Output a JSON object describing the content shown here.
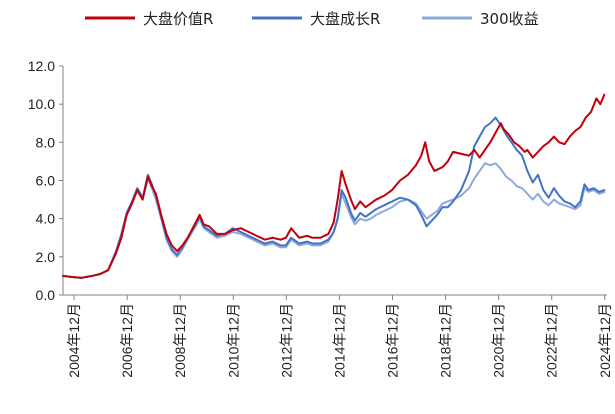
{
  "chart_data": {
    "type": "line",
    "title": "",
    "xlabel": "",
    "ylabel": "",
    "x_range": [
      2004.5,
      2025.0
    ],
    "ylim": [
      0,
      12
    ],
    "y_ticks": [
      "0.0",
      "2.0",
      "4.0",
      "6.0",
      "8.0",
      "10.0",
      "12.0"
    ],
    "x_ticks": [
      {
        "label": "2004年12月",
        "x": 2004.917
      },
      {
        "label": "2006年12月",
        "x": 2006.917
      },
      {
        "label": "2008年12月",
        "x": 2008.917
      },
      {
        "label": "2010年12月",
        "x": 2010.917
      },
      {
        "label": "2012年12月",
        "x": 2012.917
      },
      {
        "label": "2014年12月",
        "x": 2014.917
      },
      {
        "label": "2016年12月",
        "x": 2016.917
      },
      {
        "label": "2018年12月",
        "x": 2018.917
      },
      {
        "label": "2020年12月",
        "x": 2020.917
      },
      {
        "label": "2022年12月",
        "x": 2022.917
      },
      {
        "label": "2024年12月",
        "x": 2024.917
      }
    ],
    "grid": false,
    "legend_position": "top",
    "series": [
      {
        "name": "大盘价值R",
        "color": "#c0000b",
        "points": [
          [
            2004.5,
            1.0
          ],
          [
            2004.8,
            0.95
          ],
          [
            2005.2,
            0.9
          ],
          [
            2005.6,
            1.0
          ],
          [
            2005.9,
            1.1
          ],
          [
            2006.2,
            1.3
          ],
          [
            2006.5,
            2.2
          ],
          [
            2006.7,
            3.0
          ],
          [
            2006.9,
            4.2
          ],
          [
            2007.1,
            4.8
          ],
          [
            2007.3,
            5.5
          ],
          [
            2007.5,
            5.0
          ],
          [
            2007.7,
            6.2
          ],
          [
            2007.85,
            5.7
          ],
          [
            2008.0,
            5.3
          ],
          [
            2008.2,
            4.2
          ],
          [
            2008.4,
            3.2
          ],
          [
            2008.6,
            2.6
          ],
          [
            2008.8,
            2.3
          ],
          [
            2009.0,
            2.6
          ],
          [
            2009.2,
            3.0
          ],
          [
            2009.5,
            3.8
          ],
          [
            2009.65,
            4.2
          ],
          [
            2009.8,
            3.7
          ],
          [
            2010.0,
            3.6
          ],
          [
            2010.3,
            3.2
          ],
          [
            2010.6,
            3.2
          ],
          [
            2010.9,
            3.4
          ],
          [
            2011.2,
            3.5
          ],
          [
            2011.5,
            3.3
          ],
          [
            2011.8,
            3.1
          ],
          [
            2012.1,
            2.9
          ],
          [
            2012.4,
            3.0
          ],
          [
            2012.7,
            2.9
          ],
          [
            2012.9,
            3.0
          ],
          [
            2013.1,
            3.5
          ],
          [
            2013.4,
            3.0
          ],
          [
            2013.7,
            3.1
          ],
          [
            2013.9,
            3.0
          ],
          [
            2014.2,
            3.0
          ],
          [
            2014.5,
            3.2
          ],
          [
            2014.7,
            3.8
          ],
          [
            2014.85,
            5.0
          ],
          [
            2015.0,
            6.5
          ],
          [
            2015.15,
            5.8
          ],
          [
            2015.35,
            5.0
          ],
          [
            2015.5,
            4.5
          ],
          [
            2015.7,
            4.9
          ],
          [
            2015.9,
            4.6
          ],
          [
            2016.1,
            4.8
          ],
          [
            2016.3,
            5.0
          ],
          [
            2016.6,
            5.2
          ],
          [
            2016.9,
            5.5
          ],
          [
            2017.2,
            6.0
          ],
          [
            2017.5,
            6.3
          ],
          [
            2017.8,
            6.8
          ],
          [
            2018.0,
            7.3
          ],
          [
            2018.15,
            8.0
          ],
          [
            2018.3,
            7.0
          ],
          [
            2018.5,
            6.5
          ],
          [
            2018.8,
            6.7
          ],
          [
            2019.0,
            7.0
          ],
          [
            2019.2,
            7.5
          ],
          [
            2019.5,
            7.4
          ],
          [
            2019.8,
            7.3
          ],
          [
            2020.0,
            7.6
          ],
          [
            2020.2,
            7.2
          ],
          [
            2020.4,
            7.6
          ],
          [
            2020.6,
            8.0
          ],
          [
            2020.8,
            8.5
          ],
          [
            2021.0,
            9.0
          ],
          [
            2021.1,
            8.7
          ],
          [
            2021.3,
            8.4
          ],
          [
            2021.5,
            8.0
          ],
          [
            2021.7,
            7.8
          ],
          [
            2021.9,
            7.5
          ],
          [
            2022.0,
            7.6
          ],
          [
            2022.2,
            7.2
          ],
          [
            2022.4,
            7.5
          ],
          [
            2022.6,
            7.8
          ],
          [
            2022.8,
            8.0
          ],
          [
            2023.0,
            8.3
          ],
          [
            2023.2,
            8.0
          ],
          [
            2023.4,
            7.9
          ],
          [
            2023.6,
            8.3
          ],
          [
            2023.8,
            8.6
          ],
          [
            2024.0,
            8.8
          ],
          [
            2024.2,
            9.3
          ],
          [
            2024.4,
            9.6
          ],
          [
            2024.6,
            10.3
          ],
          [
            2024.75,
            10.0
          ],
          [
            2024.9,
            10.5
          ]
        ]
      },
      {
        "name": "大盘成长R",
        "color": "#4472c4",
        "points": [
          [
            2004.5,
            1.0
          ],
          [
            2004.8,
            0.95
          ],
          [
            2005.2,
            0.9
          ],
          [
            2005.6,
            1.0
          ],
          [
            2005.9,
            1.1
          ],
          [
            2006.2,
            1.3
          ],
          [
            2006.5,
            2.3
          ],
          [
            2006.7,
            3.2
          ],
          [
            2006.9,
            4.3
          ],
          [
            2007.1,
            4.9
          ],
          [
            2007.3,
            5.6
          ],
          [
            2007.5,
            5.1
          ],
          [
            2007.7,
            6.3
          ],
          [
            2007.85,
            5.8
          ],
          [
            2008.0,
            5.2
          ],
          [
            2008.2,
            4.1
          ],
          [
            2008.4,
            3.0
          ],
          [
            2008.6,
            2.4
          ],
          [
            2008.8,
            2.1
          ],
          [
            2009.0,
            2.5
          ],
          [
            2009.2,
            3.0
          ],
          [
            2009.5,
            3.7
          ],
          [
            2009.65,
            4.1
          ],
          [
            2009.8,
            3.6
          ],
          [
            2010.0,
            3.4
          ],
          [
            2010.3,
            3.1
          ],
          [
            2010.6,
            3.2
          ],
          [
            2010.9,
            3.5
          ],
          [
            2011.2,
            3.3
          ],
          [
            2011.5,
            3.1
          ],
          [
            2011.8,
            2.9
          ],
          [
            2012.1,
            2.7
          ],
          [
            2012.4,
            2.8
          ],
          [
            2012.7,
            2.6
          ],
          [
            2012.9,
            2.6
          ],
          [
            2013.1,
            3.0
          ],
          [
            2013.4,
            2.7
          ],
          [
            2013.7,
            2.8
          ],
          [
            2013.9,
            2.7
          ],
          [
            2014.2,
            2.7
          ],
          [
            2014.5,
            2.9
          ],
          [
            2014.7,
            3.3
          ],
          [
            2014.85,
            4.0
          ],
          [
            2015.0,
            5.5
          ],
          [
            2015.15,
            5.1
          ],
          [
            2015.35,
            4.3
          ],
          [
            2015.5,
            3.9
          ],
          [
            2015.7,
            4.3
          ],
          [
            2015.9,
            4.1
          ],
          [
            2016.1,
            4.3
          ],
          [
            2016.3,
            4.5
          ],
          [
            2016.6,
            4.7
          ],
          [
            2016.9,
            4.9
          ],
          [
            2017.2,
            5.1
          ],
          [
            2017.5,
            5.0
          ],
          [
            2017.8,
            4.7
          ],
          [
            2018.0,
            4.2
          ],
          [
            2018.2,
            3.6
          ],
          [
            2018.4,
            3.9
          ],
          [
            2018.6,
            4.2
          ],
          [
            2018.8,
            4.6
          ],
          [
            2019.0,
            4.6
          ],
          [
            2019.2,
            4.9
          ],
          [
            2019.5,
            5.5
          ],
          [
            2019.8,
            6.5
          ],
          [
            2020.0,
            7.8
          ],
          [
            2020.2,
            8.3
          ],
          [
            2020.4,
            8.8
          ],
          [
            2020.6,
            9.0
          ],
          [
            2020.8,
            9.3
          ],
          [
            2021.0,
            8.9
          ],
          [
            2021.2,
            8.4
          ],
          [
            2021.4,
            8.0
          ],
          [
            2021.6,
            7.6
          ],
          [
            2021.8,
            7.3
          ],
          [
            2022.0,
            6.5
          ],
          [
            2022.2,
            5.9
          ],
          [
            2022.4,
            6.3
          ],
          [
            2022.6,
            5.5
          ],
          [
            2022.8,
            5.1
          ],
          [
            2023.0,
            5.6
          ],
          [
            2023.2,
            5.2
          ],
          [
            2023.4,
            4.9
          ],
          [
            2023.6,
            4.8
          ],
          [
            2023.8,
            4.6
          ],
          [
            2024.0,
            4.9
          ],
          [
            2024.15,
            5.8
          ],
          [
            2024.3,
            5.5
          ],
          [
            2024.5,
            5.6
          ],
          [
            2024.7,
            5.4
          ],
          [
            2024.9,
            5.5
          ]
        ]
      },
      {
        "name": "300收益",
        "color": "#8eaadb",
        "points": [
          [
            2004.5,
            1.0
          ],
          [
            2004.8,
            0.95
          ],
          [
            2005.2,
            0.9
          ],
          [
            2005.6,
            1.0
          ],
          [
            2005.9,
            1.1
          ],
          [
            2006.2,
            1.3
          ],
          [
            2006.5,
            2.2
          ],
          [
            2006.7,
            3.1
          ],
          [
            2006.9,
            4.2
          ],
          [
            2007.1,
            4.8
          ],
          [
            2007.3,
            5.5
          ],
          [
            2007.5,
            5.0
          ],
          [
            2007.7,
            6.1
          ],
          [
            2007.85,
            5.6
          ],
          [
            2008.0,
            5.0
          ],
          [
            2008.2,
            4.0
          ],
          [
            2008.4,
            2.9
          ],
          [
            2008.6,
            2.3
          ],
          [
            2008.8,
            2.0
          ],
          [
            2009.0,
            2.4
          ],
          [
            2009.2,
            2.9
          ],
          [
            2009.5,
            3.6
          ],
          [
            2009.65,
            4.0
          ],
          [
            2009.8,
            3.5
          ],
          [
            2010.0,
            3.3
          ],
          [
            2010.3,
            3.0
          ],
          [
            2010.6,
            3.1
          ],
          [
            2010.9,
            3.3
          ],
          [
            2011.2,
            3.2
          ],
          [
            2011.5,
            3.0
          ],
          [
            2011.8,
            2.8
          ],
          [
            2012.1,
            2.6
          ],
          [
            2012.4,
            2.7
          ],
          [
            2012.7,
            2.5
          ],
          [
            2012.9,
            2.5
          ],
          [
            2013.1,
            2.9
          ],
          [
            2013.4,
            2.6
          ],
          [
            2013.7,
            2.7
          ],
          [
            2013.9,
            2.6
          ],
          [
            2014.2,
            2.6
          ],
          [
            2014.5,
            2.8
          ],
          [
            2014.7,
            3.3
          ],
          [
            2014.85,
            4.0
          ],
          [
            2015.0,
            5.3
          ],
          [
            2015.15,
            4.8
          ],
          [
            2015.35,
            4.1
          ],
          [
            2015.5,
            3.7
          ],
          [
            2015.7,
            4.0
          ],
          [
            2015.9,
            3.9
          ],
          [
            2016.1,
            4.0
          ],
          [
            2016.3,
            4.2
          ],
          [
            2016.6,
            4.4
          ],
          [
            2016.9,
            4.6
          ],
          [
            2017.2,
            4.9
          ],
          [
            2017.5,
            5.0
          ],
          [
            2017.8,
            4.8
          ],
          [
            2018.0,
            4.4
          ],
          [
            2018.2,
            4.0
          ],
          [
            2018.4,
            4.2
          ],
          [
            2018.6,
            4.4
          ],
          [
            2018.8,
            4.8
          ],
          [
            2019.0,
            4.9
          ],
          [
            2019.2,
            5.0
          ],
          [
            2019.5,
            5.2
          ],
          [
            2019.8,
            5.6
          ],
          [
            2020.0,
            6.1
          ],
          [
            2020.2,
            6.5
          ],
          [
            2020.4,
            6.9
          ],
          [
            2020.6,
            6.8
          ],
          [
            2020.8,
            6.9
          ],
          [
            2021.0,
            6.6
          ],
          [
            2021.2,
            6.2
          ],
          [
            2021.4,
            6.0
          ],
          [
            2021.6,
            5.7
          ],
          [
            2021.8,
            5.6
          ],
          [
            2022.0,
            5.3
          ],
          [
            2022.2,
            5.0
          ],
          [
            2022.4,
            5.3
          ],
          [
            2022.6,
            4.9
          ],
          [
            2022.8,
            4.7
          ],
          [
            2023.0,
            5.0
          ],
          [
            2023.2,
            4.8
          ],
          [
            2023.4,
            4.7
          ],
          [
            2023.6,
            4.6
          ],
          [
            2023.8,
            4.5
          ],
          [
            2024.0,
            4.7
          ],
          [
            2024.15,
            5.6
          ],
          [
            2024.3,
            5.4
          ],
          [
            2024.5,
            5.5
          ],
          [
            2024.7,
            5.3
          ],
          [
            2024.9,
            5.4
          ]
        ]
      }
    ]
  }
}
